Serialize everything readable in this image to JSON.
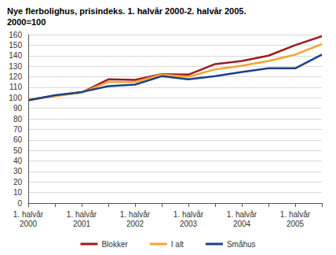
{
  "chart_data": {
    "type": "line",
    "title": "Nye flerbolighus, prisindeks. 1. halvår 2000-2. halvår 2005.\n2000=100",
    "categories": [
      "1. halvår\n2000",
      null,
      "1. halvår\n2001",
      null,
      "1. halvår\n2002",
      null,
      "1. halvår\n2003",
      null,
      "1. halvår\n2004",
      null,
      "1. halvår\n2005",
      null
    ],
    "series": [
      {
        "name": "Blokker",
        "color": "#9b1c20",
        "values": [
          98,
          102,
          105,
          117.5,
          117,
          122.5,
          122,
          132,
          135,
          140,
          150,
          158.5
        ]
      },
      {
        "name": "I alt",
        "color": "#f5a431",
        "values": [
          98.5,
          101.5,
          105,
          115,
          115,
          122,
          120,
          127,
          130.5,
          135,
          141,
          151
        ]
      },
      {
        "name": "Småhus",
        "color": "#1d3f8a",
        "values": [
          97.5,
          102.5,
          105.5,
          111,
          112.5,
          120.5,
          117.5,
          120.5,
          124.5,
          128,
          128,
          141
        ]
      }
    ],
    "ylim": [
      0,
      160
    ],
    "yticks": [
      0,
      10,
      20,
      30,
      40,
      50,
      60,
      70,
      80,
      90,
      100,
      110,
      120,
      130,
      140,
      150,
      160
    ],
    "grid": true,
    "legend": "bottom"
  }
}
